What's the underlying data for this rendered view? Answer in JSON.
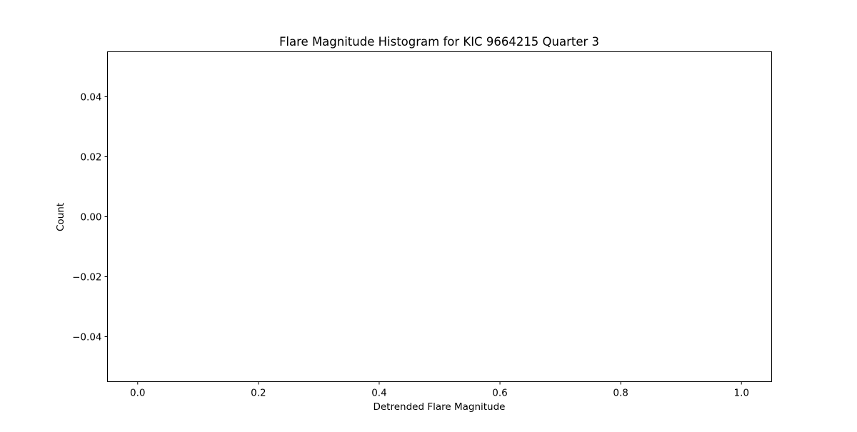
{
  "chart_data": {
    "type": "bar",
    "title": "Flare Magnitude Histogram for KIC 9664215 Quarter 3",
    "xlabel": "Detrended Flare Magnitude",
    "ylabel": "Count",
    "x": [],
    "values": [],
    "xlim": [
      -0.05,
      1.05
    ],
    "ylim": [
      -0.055,
      0.055
    ],
    "x_ticks": [
      0.0,
      0.2,
      0.4,
      0.6,
      0.8,
      1.0
    ],
    "x_tick_labels": [
      "0.0",
      "0.2",
      "0.4",
      "0.6",
      "0.8",
      "1.0"
    ],
    "y_ticks": [
      0.04,
      0.02,
      0.0,
      -0.02,
      -0.04
    ],
    "y_tick_labels": [
      "0.04",
      "0.02",
      "0.00",
      "−0.02",
      "−0.04"
    ],
    "grid": false,
    "legend": "none"
  }
}
